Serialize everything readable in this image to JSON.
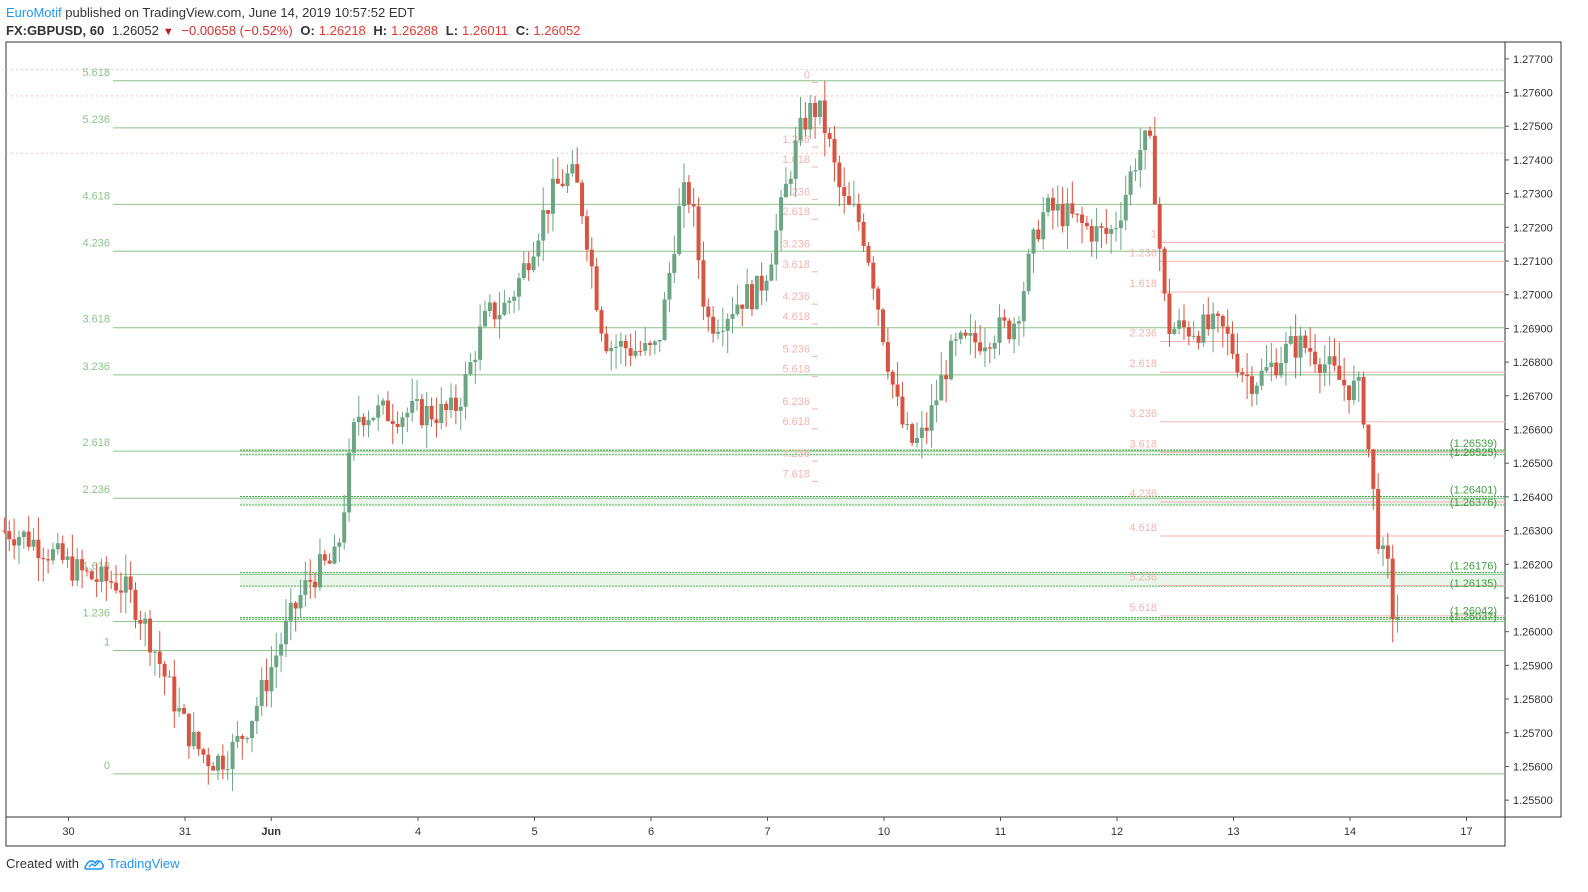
{
  "header": {
    "author": "EuroMotif",
    "published_text": "published on TradingView.com, June 14, 2019 10:57:52 EDT",
    "symbol": "FX:GBPUSD, 60",
    "last": "1.26052",
    "change": "−0.00658 (−0.52%)",
    "o_label": "O:",
    "o_value": "1.26218",
    "h_label": "H:",
    "h_value": "1.26288",
    "l_label": "L:",
    "l_value": "1.26011",
    "c_label": "C:",
    "c_value": "1.26052"
  },
  "footer": {
    "created_with": "Created with",
    "brand": "TradingView"
  },
  "colors": {
    "up": "#6ba583",
    "down": "#d75442",
    "fib_left": "#8bc28a",
    "fib_mid": "#f1b5b0",
    "fib_right": "#f1b5b0",
    "zone": "#4caf50",
    "axis": "#555555",
    "grid_dot": "#f3c4c0"
  },
  "chart_data": {
    "type": "candlestick",
    "symbol": "GBPUSD",
    "timeframe": "60",
    "ylim": [
      1.2545,
      1.2775
    ],
    "y_ticks": [
      "1.27700",
      "1.27600",
      "1.27500",
      "1.27400",
      "1.27300",
      "1.27200",
      "1.27100",
      "1.27000",
      "1.26900",
      "1.26800",
      "1.26700",
      "1.26600",
      "1.26500",
      "1.26400",
      "1.26300",
      "1.26200",
      "1.26100",
      "1.26000",
      "1.25900",
      "1.25800",
      "1.25700",
      "1.25600",
      "1.25500"
    ],
    "x_ticks": [
      {
        "label": "30",
        "day": -1
      },
      {
        "label": "31",
        "day": 0
      },
      {
        "label": "Jun",
        "day": 0.74
      },
      {
        "label": "4",
        "day": 2
      },
      {
        "label": "5",
        "day": 3
      },
      {
        "label": "6",
        "day": 4
      },
      {
        "label": "7",
        "day": 5
      },
      {
        "label": "10",
        "day": 6
      },
      {
        "label": "11",
        "day": 7
      },
      {
        "label": "12",
        "day": 8
      },
      {
        "label": "13",
        "day": 9
      },
      {
        "label": "14",
        "day": 10
      },
      {
        "label": "17",
        "day": 11
      }
    ],
    "anchors": [
      {
        "day": -1.55,
        "price": 1.263
      },
      {
        "day": -0.6,
        "price": 1.2615
      },
      {
        "day": 0.3,
        "price": 1.2562
      },
      {
        "day": 1.3,
        "price": 1.262
      },
      {
        "day": 1.55,
        "price": 1.2665
      },
      {
        "day": 2.3,
        "price": 1.2665
      },
      {
        "day": 2.7,
        "price": 1.2695
      },
      {
        "day": 3.35,
        "price": 1.2735
      },
      {
        "day": 3.7,
        "price": 1.2685
      },
      {
        "day": 4.05,
        "price": 1.2683
      },
      {
        "day": 4.35,
        "price": 1.273
      },
      {
        "day": 4.55,
        "price": 1.2692
      },
      {
        "day": 4.9,
        "price": 1.27
      },
      {
        "day": 5.45,
        "price": 1.2755
      },
      {
        "day": 5.75,
        "price": 1.2725
      },
      {
        "day": 6.3,
        "price": 1.2656
      },
      {
        "day": 6.7,
        "price": 1.2685
      },
      {
        "day": 7.1,
        "price": 1.269
      },
      {
        "day": 7.45,
        "price": 1.2725
      },
      {
        "day": 7.95,
        "price": 1.2718
      },
      {
        "day": 8.3,
        "price": 1.2745
      },
      {
        "day": 8.5,
        "price": 1.269
      },
      {
        "day": 8.9,
        "price": 1.269
      },
      {
        "day": 9.2,
        "price": 1.2675
      },
      {
        "day": 9.6,
        "price": 1.2685
      },
      {
        "day": 10.1,
        "price": 1.2672
      },
      {
        "day": 10.35,
        "price": 1.262
      },
      {
        "day": 10.42,
        "price": 1.2605
      }
    ],
    "fib_left": {
      "levels": [
        "5.618",
        "5.236",
        "4.618",
        "4.236",
        "3.618",
        "3.236",
        "2.618",
        "2.236",
        "1.618",
        "1.236",
        "1",
        "0"
      ],
      "prices": [
        1.27635,
        1.27495,
        1.27268,
        1.27129,
        1.26902,
        1.26762,
        1.26536,
        1.26396,
        1.2617,
        1.2603,
        1.25944,
        1.25578
      ]
    },
    "fib_mid": {
      "levels": [
        "0",
        "1.236",
        "1.618",
        "2.236",
        "2.618",
        "3.236",
        "3.618",
        "4.236",
        "4.618",
        "5.236",
        "5.618",
        "6.236",
        "6.618",
        "7.236",
        "7.618"
      ],
      "prices": [
        1.2763,
        1.27438,
        1.27379,
        1.27283,
        1.27224,
        1.27128,
        1.27068,
        1.26972,
        1.26913,
        1.26817,
        1.26757,
        1.26661,
        1.26602,
        1.26506,
        1.26446
      ]
    },
    "fib_right": {
      "levels": [
        "1",
        "1.236",
        "1.618",
        "2.236",
        "2.618",
        "3.236",
        "3.618",
        "4.236",
        "4.618",
        "5.236",
        "5.618"
      ],
      "prices": [
        1.27155,
        1.27099,
        1.27008,
        1.26861,
        1.2677,
        1.26623,
        1.26532,
        1.26385,
        1.26284,
        1.26137,
        1.26047
      ]
    },
    "zones": [
      {
        "top": "1.26539",
        "bottom": "1.26525",
        "top_value": 1.26539,
        "bottom_value": 1.26525
      },
      {
        "top": "1.26401",
        "bottom": "1.26376",
        "top_value": 1.26401,
        "bottom_value": 1.26376
      },
      {
        "top": "1.26176",
        "bottom": "1.26135",
        "top_value": 1.26176,
        "bottom_value": 1.26135
      },
      {
        "top": "1.26042",
        "bottom": "1.26037",
        "top_value": 1.26042,
        "bottom_value": 1.26037
      }
    ],
    "dotted_lines": [
      1.27668,
      1.2759,
      1.2742
    ]
  }
}
